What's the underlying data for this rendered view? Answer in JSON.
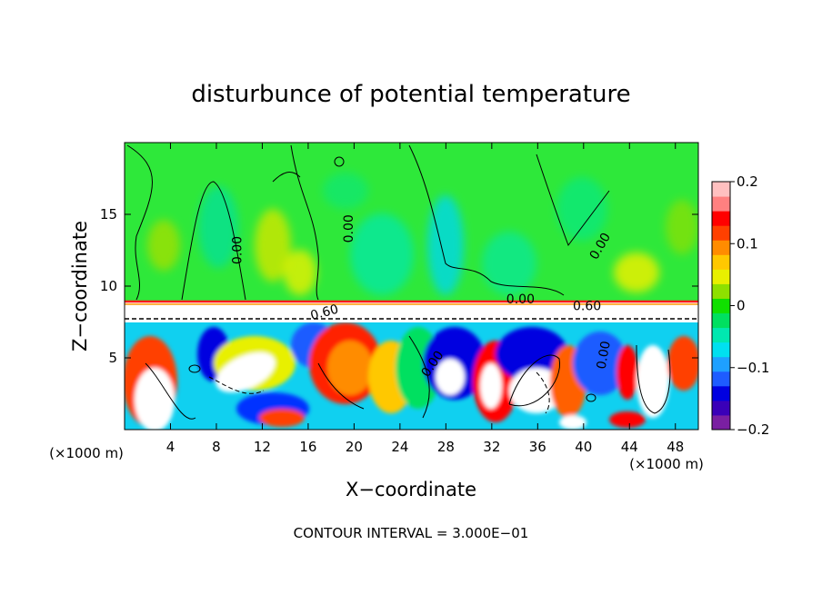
{
  "chart_data": {
    "type": "heatmap",
    "title": "disturbunce of potential temperature",
    "xlabel": "X−coordinate",
    "ylabel": "Z−coordinate",
    "x_unit_label": "(×1000 m)",
    "z_unit_label": "(×1000 m)",
    "footer": "CONTOUR INTERVAL = 3.000E−01",
    "xlim": [
      0,
      50
    ],
    "ylim": [
      0,
      20
    ],
    "x_ticks": [
      4,
      8,
      12,
      16,
      20,
      24,
      28,
      32,
      36,
      40,
      44,
      48
    ],
    "x_tick_labels": [
      "4",
      "8",
      "12",
      "16",
      "20",
      "24",
      "28",
      "32",
      "36",
      "40",
      "44",
      "48"
    ],
    "y_ticks": [
      5,
      10,
      15
    ],
    "y_tick_labels": [
      "5",
      "10",
      "15"
    ],
    "colorbar": {
      "range": [
        -0.2,
        0.2
      ],
      "tick_values": [
        0.2,
        0.1,
        0,
        -0.1,
        -0.2
      ],
      "tick_labels": [
        "0.2",
        "0.1",
        "0",
        "−0.1",
        "−0.2"
      ],
      "colors": [
        "#7a1fa2",
        "#3a00b8",
        "#0000e0",
        "#1e5cff",
        "#1ea0ff",
        "#00e0f0",
        "#00e8b0",
        "#00e060",
        "#10e000",
        "#8ee000",
        "#e8f000",
        "#ffc800",
        "#ff8c00",
        "#ff4000",
        "#ff0000",
        "#ff8080",
        "#ffc0c0"
      ]
    },
    "contour_labels": [
      {
        "text": "0.00",
        "x": 19.5,
        "z": 14.0,
        "rotate": -90
      },
      {
        "text": "0.00",
        "x": 9.8,
        "z": 12.5,
        "rotate": -90
      },
      {
        "text": "0.00",
        "x": 41.4,
        "z": 12.8,
        "rotate": -60
      },
      {
        "text": "0.00",
        "x": 34.5,
        "z": 9.1,
        "rotate": 0
      },
      {
        "text": "0.60",
        "x": 40.3,
        "z": 8.65,
        "rotate": 0
      },
      {
        "text": "0.60",
        "x": 17.4,
        "z": 8.2,
        "rotate": -15
      },
      {
        "text": "0.00",
        "x": 26.8,
        "z": 4.6,
        "rotate": -55
      },
      {
        "text": "0.00",
        "x": 41.7,
        "z": 5.2,
        "rotate": -80
      }
    ],
    "features": {
      "upper_layer_mean": 0.01,
      "inversion_layer_z": [
        7.7,
        9.0
      ],
      "lower_layer_range": [
        -0.2,
        0.2
      ]
    }
  }
}
